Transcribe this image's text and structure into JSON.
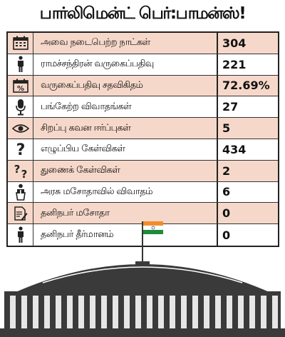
{
  "title": "பார்லிமென்ட் பெர்:பாமன்ஸ்!",
  "rows": [
    {
      "icon": "calendar-icon",
      "label": "அவை நடைபெற்ற நாட்கள்",
      "value": "304"
    },
    {
      "icon": "person-icon",
      "label": "ராமச்சந்திரன் வருகைப்பதிவு",
      "value": "221"
    },
    {
      "icon": "percent-calendar-icon",
      "label": "வருகைப்பதிவு சதவிகிதம்",
      "value": "72.69%"
    },
    {
      "icon": "microphone-icon",
      "label": "பங்கேற்ற விவாதங்கள்",
      "value": "27"
    },
    {
      "icon": "eye-icon",
      "label": "சிறப்பு கவன ஈர்ப்புகள்",
      "value": "5"
    },
    {
      "icon": "question-mark-icon",
      "label": "எழுப்பிய கேள்விகள்",
      "value": "434"
    },
    {
      "icon": "double-question-icon",
      "label": "துணைக் கேள்விகள்",
      "value": "2"
    },
    {
      "icon": "speaker-at-podium-icon",
      "label": "அரசு மசோதாவில் விவாதம்",
      "value": "6"
    },
    {
      "icon": "document-pen-icon",
      "label": "தனிநபர் மசோதா",
      "value": "0"
    },
    {
      "icon": "person-icon",
      "label": "தனிநபர் தீர்மானம்",
      "value": "0"
    }
  ],
  "colors": {
    "row_alt": "#f6d8ca",
    "flag_saffron": "#f28c28",
    "flag_green": "#1e8b3a",
    "dome": "#3a3a3a"
  }
}
